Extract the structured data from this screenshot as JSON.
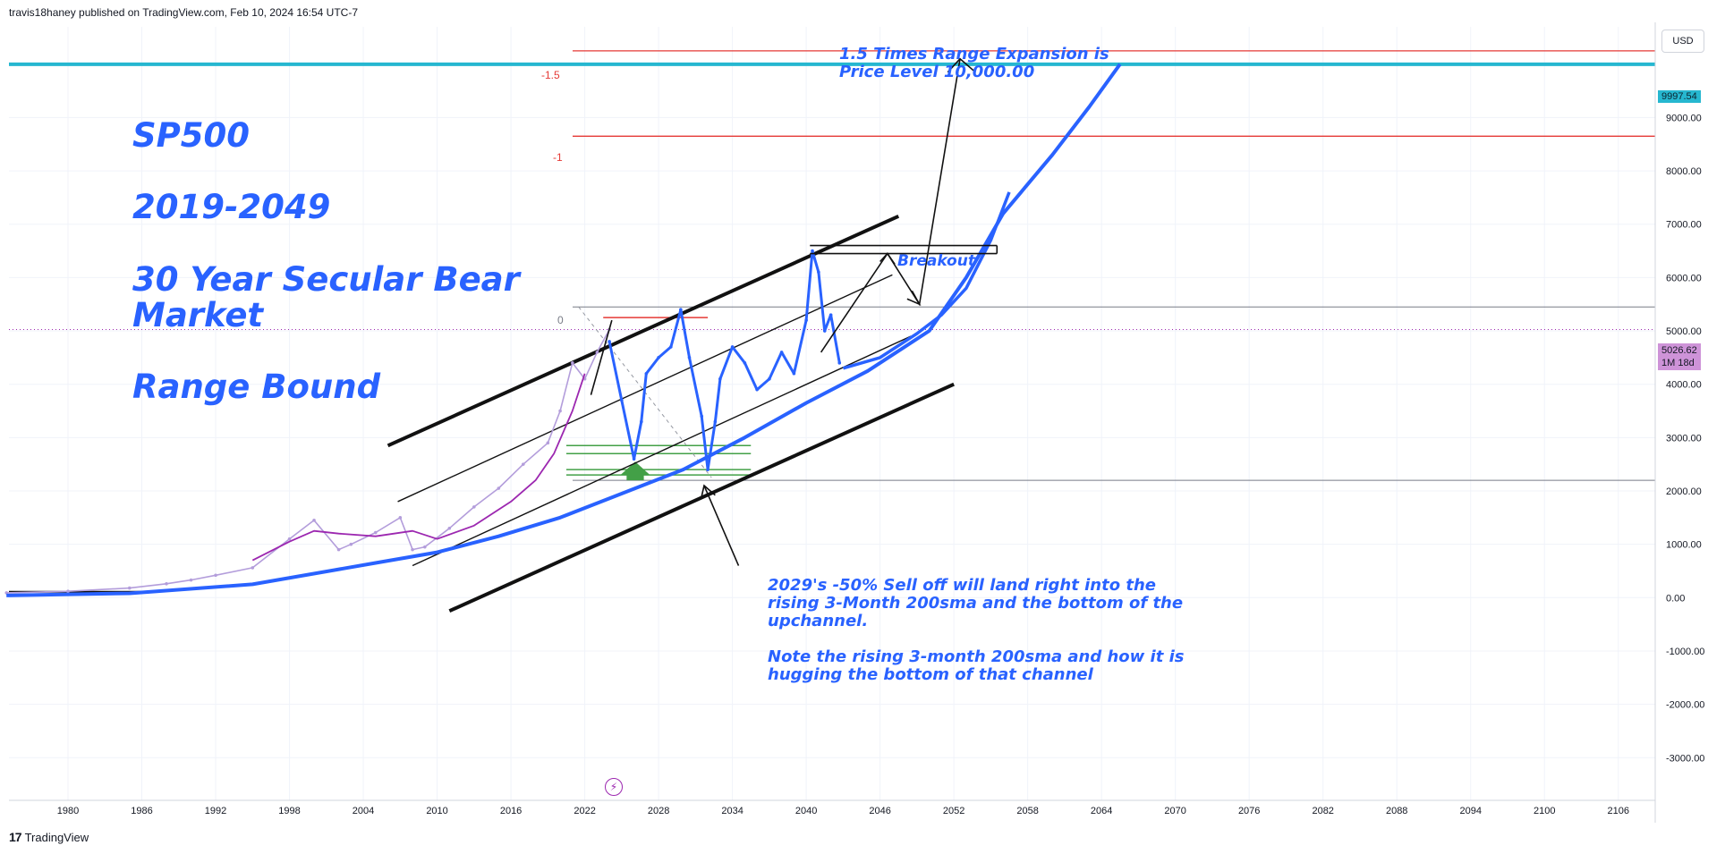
{
  "header": {
    "publisher": "travis18haney published on TradingView.com, Feb 10, 2024 16:54 UTC-7"
  },
  "currency_button": "USD",
  "footer": {
    "brand_mark": "17",
    "brand_name": "TradingView"
  },
  "price_tags": {
    "target": "9997.54",
    "current": "5026.62",
    "countdown": "1M 18d"
  },
  "colors": {
    "cyan_line": "#26b7d0",
    "red_line": "#e53935",
    "price_series": "#2962ff",
    "sma": "#2962ff",
    "purple_sma": "#9c27b0",
    "history_candles": "#b39ddb",
    "support_lines": "#43a047",
    "current_tag_bg": "#ce93d8"
  },
  "annotations": {
    "title_lines": [
      "SP500",
      "2019-2049",
      "30 Year Secular Bear",
      "Market",
      "Range Bound"
    ],
    "target_note": [
      "1.5 Times Range Expansion is",
      "Price Level 10,000.00"
    ],
    "breakout": "Breakout",
    "sell_off_note": [
      "2029's -50% Sell off will land right into the",
      "rising 3-Month 200sma and the bottom of the",
      "upchannel.",
      "",
      "Note the rising 3-month 200sma and how it is",
      "hugging the bottom of that channel"
    ],
    "fib_labels": [
      "-1.5",
      "-1",
      "0"
    ]
  },
  "chart_data": {
    "type": "line",
    "title": "SP500 2019-2049 30 Year Secular Bear Market Range Bound",
    "xlabel": "",
    "ylabel": "USD",
    "x_ticks": [
      "1980",
      "1986",
      "1992",
      "1998",
      "2004",
      "2010",
      "2016",
      "2022",
      "2028",
      "2034",
      "2040",
      "2046",
      "2052",
      "2058",
      "2064",
      "2070",
      "2076",
      "2082",
      "2088",
      "2094",
      "2100",
      "2106"
    ],
    "y_ticks": [
      "9000.00",
      "8000.00",
      "7000.00",
      "6000.00",
      "5000.00",
      "4000.00",
      "3000.00",
      "2000.00",
      "1000.00",
      "0.00",
      "-1000.00",
      "-2000.00",
      "-3000.00"
    ],
    "y_tick_values": [
      9000,
      8000,
      7000,
      6000,
      5000,
      4000,
      3000,
      2000,
      1000,
      0,
      -1000,
      -2000,
      -3000
    ],
    "ylim": [
      -3800,
      10700
    ],
    "xlim": [
      1975.2,
      2109
    ],
    "horizontal_levels": [
      {
        "name": "range-expansion-target",
        "value": 9997.54
      },
      {
        "name": "fib-minus-1.5",
        "value": 10250
      },
      {
        "name": "fib-minus-1",
        "value": 8650
      },
      {
        "name": "fib-0-range-top",
        "value": 5450
      },
      {
        "name": "range-bottom",
        "value": 2200
      },
      {
        "name": "current-price",
        "value": 5026.62
      }
    ],
    "series": [
      {
        "name": "SP500 historical",
        "x": [
          1975,
          1980,
          1985,
          1988,
          1990,
          1992,
          1995,
          1998,
          2000,
          2002,
          2003,
          2005,
          2007,
          2008,
          2009,
          2011,
          2013,
          2015,
          2017,
          2019,
          2020,
          2021,
          2022,
          2023,
          2024
        ],
        "y": [
          90,
          120,
          180,
          260,
          330,
          420,
          560,
          1100,
          1450,
          900,
          1000,
          1220,
          1500,
          900,
          950,
          1300,
          1700,
          2050,
          2500,
          2900,
          3500,
          4400,
          4100,
          4600,
          5026
        ]
      },
      {
        "name": "Projected path 2024-2042",
        "x": [
          2024,
          2025,
          2026,
          2026.6,
          2027,
          2028,
          2029,
          2029.8,
          2030.5,
          2031.5,
          2032,
          2032.6,
          2033,
          2034,
          2035,
          2036,
          2037,
          2038,
          2039,
          2040,
          2040.5,
          2041,
          2041.5,
          2042,
          2042.7
        ],
        "y": [
          4800,
          3700,
          2600,
          3300,
          4200,
          4500,
          4700,
          5400,
          4500,
          3400,
          2400,
          3300,
          4100,
          4700,
          4400,
          3900,
          4100,
          4600,
          4200,
          5200,
          6500,
          6100,
          5000,
          5300,
          4400
        ]
      },
      {
        "name": "3-Month 200sma",
        "x": [
          1975,
          1985,
          1995,
          2005,
          2010,
          2015,
          2020,
          2025,
          2030,
          2035,
          2040,
          2045,
          2050,
          2053,
          2056,
          2060,
          2063,
          2065.5
        ],
        "y": [
          40,
          80,
          250,
          650,
          850,
          1150,
          1500,
          1950,
          2400,
          3000,
          3650,
          4250,
          5000,
          6000,
          7200,
          8300,
          9200,
          10000
        ]
      },
      {
        "name": "Projected sma extension",
        "x": [
          2043,
          2046,
          2049,
          2051,
          2053,
          2055,
          2056.5
        ],
        "y": [
          4300,
          4500,
          4950,
          5300,
          5800,
          6700,
          7600
        ]
      },
      {
        "name": "Purple moving average",
        "x": [
          1995,
          1998,
          2000,
          2002,
          2005,
          2008,
          2010,
          2013,
          2016,
          2018,
          2019.5,
          2021,
          2022
        ],
        "y": [
          700,
          1050,
          1250,
          1200,
          1150,
          1250,
          1100,
          1350,
          1800,
          2200,
          2700,
          3500,
          4200
        ]
      }
    ],
    "channel": [
      {
        "name": "upper-channel",
        "x": [
          2006,
          2047.5
        ],
        "y": [
          2850,
          7150
        ]
      },
      {
        "name": "middle-channel",
        "x": [
          2006.8,
          2047
        ],
        "y": [
          1800,
          6050
        ]
      },
      {
        "name": "lower-mid-channel",
        "x": [
          2008,
          2048.5
        ],
        "y": [
          600,
          4900
        ]
      },
      {
        "name": "lower-channel",
        "x": [
          2011,
          2052
        ],
        "y": [
          -250,
          4000
        ]
      }
    ]
  }
}
